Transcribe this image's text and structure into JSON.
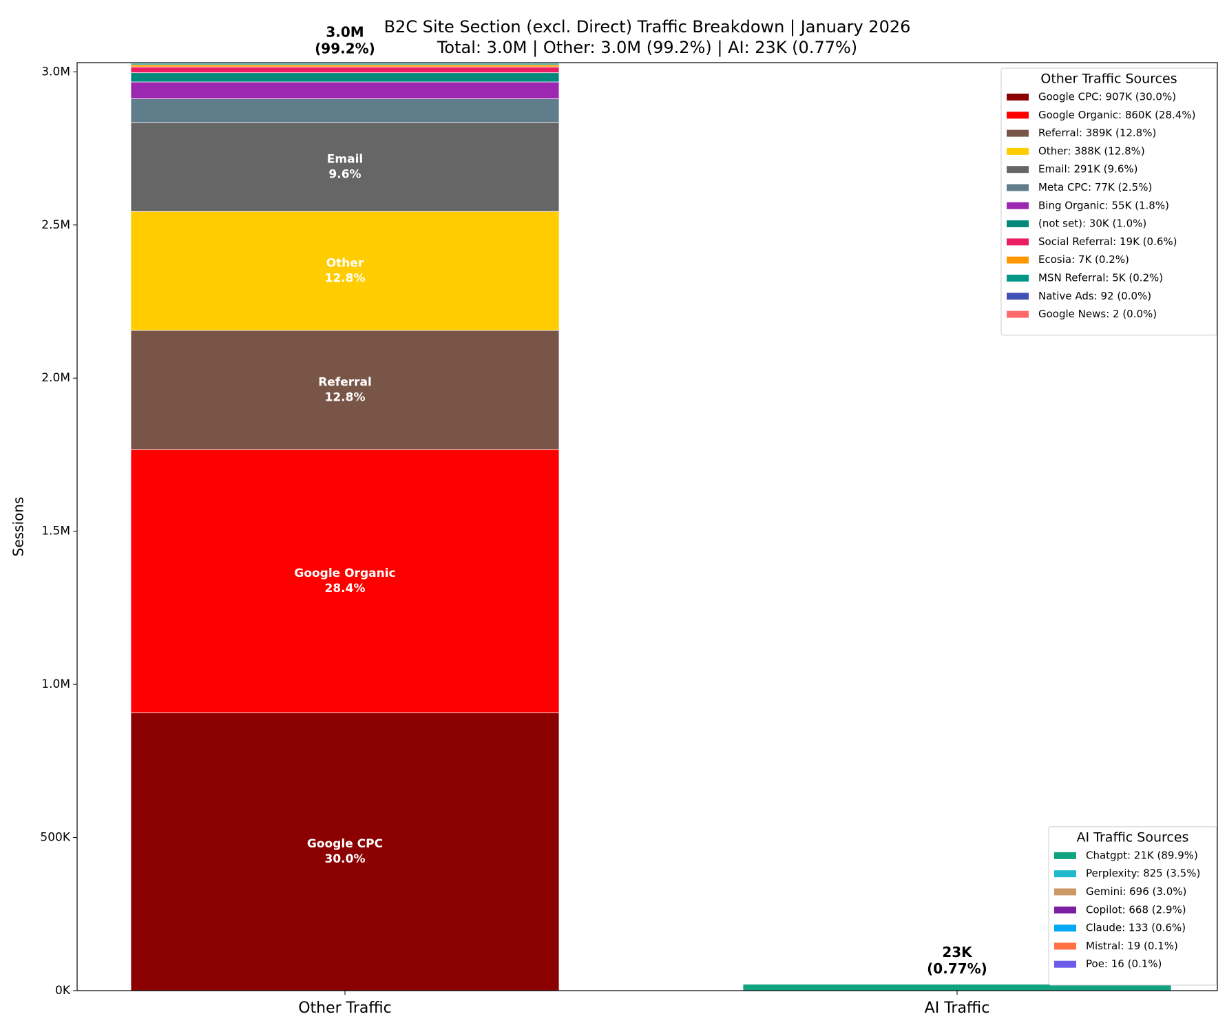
{
  "chart_data": {
    "type": "stacked_bar",
    "title": "B2C Site Section (excl. Direct) Traffic Breakdown | January 2026",
    "subtitle": "Total: 3.0M | Other: 3.0M (99.2%) | AI: 23K (0.77%)",
    "y_label": "Sessions",
    "categories": [
      "Other Traffic",
      "AI Traffic"
    ],
    "total_labels": [
      [
        "3.0M",
        "(99.2%)"
      ],
      [
        "23K",
        "(0.77%)"
      ]
    ],
    "ylim": [
      0,
      3030000
    ],
    "yticks": [
      {
        "value": 0,
        "label": "0K"
      },
      {
        "value": 500000,
        "label": "500K"
      },
      {
        "value": 1000000,
        "label": "1.0M"
      },
      {
        "value": 1500000,
        "label": "1.5M"
      },
      {
        "value": 2000000,
        "label": "2.0M"
      },
      {
        "value": 2500000,
        "label": "2.5M"
      },
      {
        "value": 3000000,
        "label": "3.0M"
      }
    ],
    "legends": [
      {
        "title": "Other Traffic Sources",
        "position": "upper right"
      },
      {
        "title": "AI Traffic Sources",
        "position": "lower right"
      }
    ],
    "series": [
      {
        "name": "Google CPC",
        "color": "#8b0000",
        "values": [
          907000,
          null
        ],
        "legend_label": "Google CPC: 907K (30.0%)",
        "segment_label": "30.0%"
      },
      {
        "name": "Google Organic",
        "color": "#ff0000",
        "values": [
          860000,
          null
        ],
        "legend_label": "Google Organic: 860K (28.4%)",
        "segment_label": "28.4%"
      },
      {
        "name": "Referral",
        "color": "#795548",
        "values": [
          389000,
          null
        ],
        "legend_label": "Referral: 389K (12.8%)",
        "segment_label": "12.8%"
      },
      {
        "name": "Other",
        "color": "#ffcc00",
        "values": [
          388000,
          null
        ],
        "legend_label": "Other: 388K (12.8%)",
        "segment_label": "12.8%"
      },
      {
        "name": "Email",
        "color": "#666666",
        "values": [
          291000,
          null
        ],
        "legend_label": "Email: 291K (9.6%)",
        "segment_label": "9.6%"
      },
      {
        "name": "Meta CPC",
        "color": "#607d8b",
        "values": [
          77000,
          null
        ],
        "legend_label": "Meta CPC: 77K (2.5%)"
      },
      {
        "name": "Bing Organic",
        "color": "#9c27b0",
        "values": [
          55000,
          null
        ],
        "legend_label": "Bing Organic: 55K (1.8%)"
      },
      {
        "name": "(not set)",
        "color": "#00897b",
        "values": [
          30000,
          null
        ],
        "legend_label": "(not set): 30K (1.0%)"
      },
      {
        "name": "Social Referral",
        "color": "#e91e63",
        "values": [
          19000,
          null
        ],
        "legend_label": "Social Referral: 19K (0.6%)"
      },
      {
        "name": "Ecosia",
        "color": "#ff9800",
        "values": [
          7000,
          null
        ],
        "legend_label": "Ecosia: 7K (0.2%)"
      },
      {
        "name": "MSN Referral",
        "color": "#009688",
        "values": [
          5000,
          null
        ],
        "legend_label": "MSN Referral: 5K (0.2%)"
      },
      {
        "name": "Native Ads",
        "color": "#3f51b5",
        "values": [
          92,
          null
        ],
        "legend_label": "Native Ads: 92 (0.0%)"
      },
      {
        "name": "Google News",
        "color": "#ff6b6b",
        "values": [
          2,
          null
        ],
        "legend_label": "Google News: 2 (0.0%)"
      },
      {
        "name": "Chatgpt",
        "color": "#10a37f",
        "values": [
          null,
          21000
        ],
        "legend_label": "Chatgpt: 21K (89.9%)"
      },
      {
        "name": "Perplexity",
        "color": "#20b8cd",
        "values": [
          null,
          825
        ],
        "legend_label": "Perplexity: 825 (3.5%)"
      },
      {
        "name": "Gemini",
        "color": "#cc9966",
        "values": [
          null,
          696
        ],
        "legend_label": "Gemini: 696 (3.0%)"
      },
      {
        "name": "Copilot",
        "color": "#7b1fa2",
        "values": [
          null,
          668
        ],
        "legend_label": "Copilot: 668 (2.9%)"
      },
      {
        "name": "Claude",
        "color": "#03a9f4",
        "values": [
          null,
          133
        ],
        "legend_label": "Claude: 133 (0.6%)"
      },
      {
        "name": "Mistral",
        "color": "#ff7043",
        "values": [
          null,
          19
        ],
        "legend_label": "Mistral: 19 (0.1%)"
      },
      {
        "name": "Poe",
        "color": "#6c5ce7",
        "values": [
          null,
          16
        ],
        "legend_label": "Poe: 16 (0.1%)"
      }
    ]
  }
}
